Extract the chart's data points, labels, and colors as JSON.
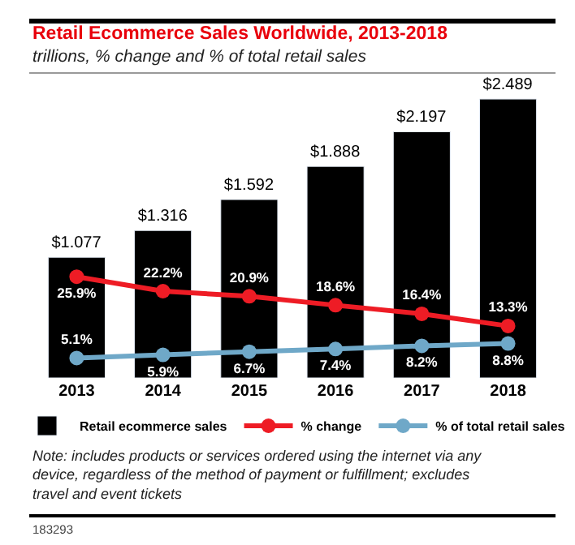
{
  "chart_data": {
    "type": "bar",
    "title": "Retail Ecommerce Sales Worldwide, 2013-2018",
    "subtitle": "trillions, % change and % of total retail sales",
    "categories": [
      "2013",
      "2014",
      "2015",
      "2016",
      "2017",
      "2018"
    ],
    "series": [
      {
        "name": "Retail ecommerce sales",
        "color": "#000000",
        "values": [
          1.077,
          1.316,
          1.592,
          1.888,
          2.197,
          2.489
        ],
        "value_labels": [
          "$1.077",
          "$1.316",
          "$1.592",
          "$1.888",
          "$2.197",
          "$2.489"
        ]
      },
      {
        "name": "% change",
        "type": "line",
        "axis": "y2",
        "color": "#ee1c25",
        "values": [
          25.9,
          22.2,
          20.9,
          18.6,
          16.4,
          13.3
        ],
        "value_labels": [
          "25.9%",
          "22.2%",
          "20.9%",
          "18.6%",
          "16.4%",
          "13.3%"
        ]
      },
      {
        "name": "% of total retail sales",
        "type": "line",
        "axis": "y2",
        "color": "#6fa8c8",
        "values": [
          5.1,
          5.9,
          6.7,
          7.4,
          8.2,
          8.8
        ],
        "value_labels": [
          "5.1%",
          "5.9%",
          "6.7%",
          "7.4%",
          "8.2%",
          "8.8%"
        ]
      }
    ],
    "marker": "circle",
    "line_style": "solid",
    "grid": false,
    "legend": "bottom",
    "annotations": [
      "Note: includes products or services ordered using the internet via any device, regardless of the method of payment or fulfillment; excludes travel and event tickets",
      "183293"
    ]
  }
}
